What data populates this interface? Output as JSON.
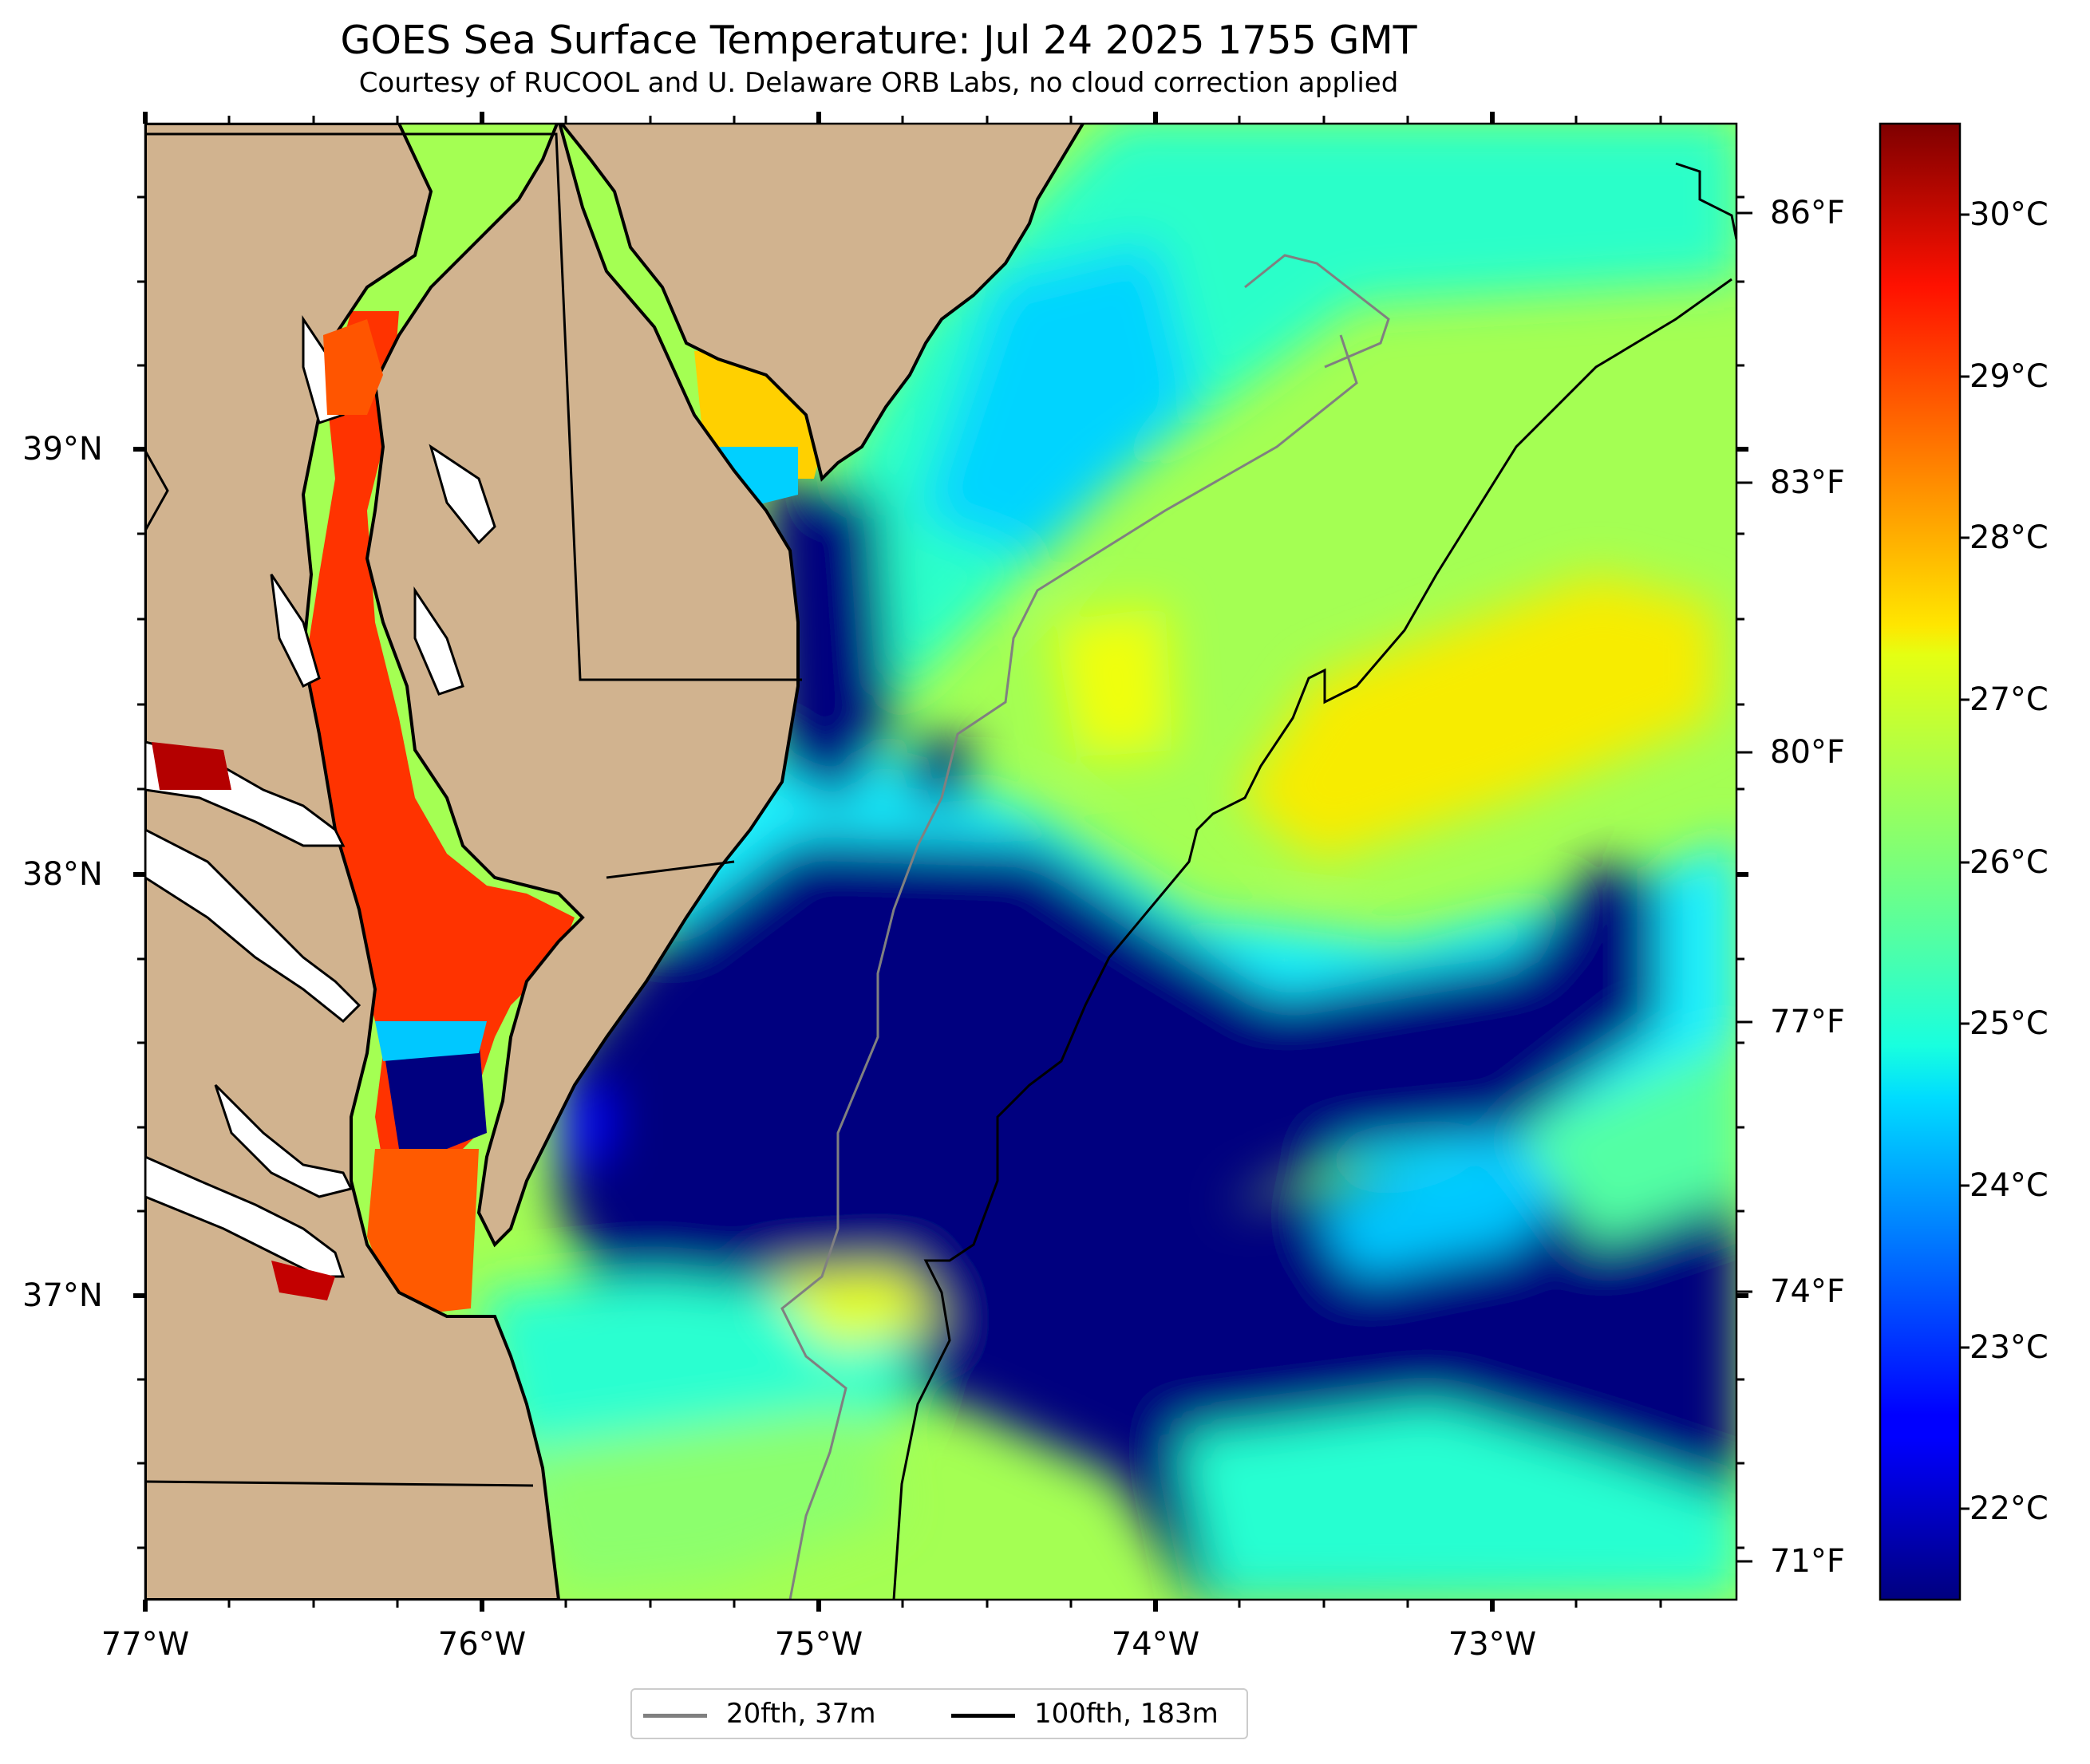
{
  "title": "GOES Sea Surface Temperature: Jul 24 2025 1755 GMT",
  "subtitle": "Courtesy of RUCOOL and U. Delaware ORB Labs, no cloud correction applied",
  "map": {
    "lon_labels": [
      "77°W",
      "76°W",
      "75°W",
      "74°W",
      "73°W"
    ],
    "lat_labels": [
      "39°N",
      "38°N",
      "37°N"
    ],
    "colors": {
      "land": "#d1b38f",
      "coast": "#000000",
      "isobath_20": "#808080",
      "isobath_100": "#000000",
      "cold": "#00007f",
      "warm": "#ffff00"
    }
  },
  "fahrenheit_scale": {
    "labels": [
      "86°F",
      "83°F",
      "80°F",
      "77°F",
      "74°F",
      "71°F"
    ]
  },
  "colorbar": {
    "labels": [
      "30°C",
      "29°C",
      "28°C",
      "27°C",
      "26°C",
      "25°C",
      "24°C",
      "23°C",
      "22°C"
    ],
    "range_c": [
      21.5,
      30.5
    ],
    "colormap": "jet"
  },
  "legend": {
    "items": [
      {
        "label": "20fth, 37m",
        "color": "#808080"
      },
      {
        "label": "100fth, 183m",
        "color": "#000000"
      }
    ]
  }
}
